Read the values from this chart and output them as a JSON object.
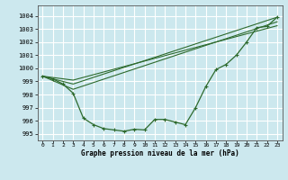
{
  "title": "Graphe pression niveau de la mer (hPa)",
  "bg_color": "#cce8ee",
  "grid_color": "#ffffff",
  "line_color": "#2d6a2d",
  "marker_color": "#2d6a2d",
  "xlim": [
    -0.5,
    23.5
  ],
  "ylim": [
    994.5,
    1004.8
  ],
  "yticks": [
    995,
    996,
    997,
    998,
    999,
    1000,
    1001,
    1002,
    1003,
    1004
  ],
  "xticks": [
    0,
    1,
    2,
    3,
    4,
    5,
    6,
    7,
    8,
    9,
    10,
    11,
    12,
    13,
    14,
    15,
    16,
    17,
    18,
    19,
    20,
    21,
    22,
    23
  ],
  "series_main": {
    "x": [
      0,
      1,
      2,
      3,
      4,
      5,
      6,
      7,
      8,
      9,
      10,
      11,
      12,
      13,
      14,
      15,
      16,
      17,
      18,
      19,
      20,
      21,
      22,
      23
    ],
    "y": [
      999.4,
      999.2,
      998.8,
      998.1,
      996.2,
      995.7,
      995.4,
      995.3,
      995.2,
      995.35,
      995.3,
      996.1,
      996.1,
      995.9,
      995.7,
      997.0,
      998.6,
      999.9,
      1000.3,
      1001.0,
      1002.0,
      1003.1,
      1003.2,
      1003.9
    ]
  },
  "series_lines": [
    {
      "x": [
        0,
        3,
        23
      ],
      "y": [
        999.4,
        998.8,
        1003.9
      ]
    },
    {
      "x": [
        0,
        3,
        23
      ],
      "y": [
        999.4,
        998.4,
        1003.55
      ]
    },
    {
      "x": [
        0,
        3,
        23
      ],
      "y": [
        999.4,
        999.1,
        1003.25
      ]
    }
  ]
}
